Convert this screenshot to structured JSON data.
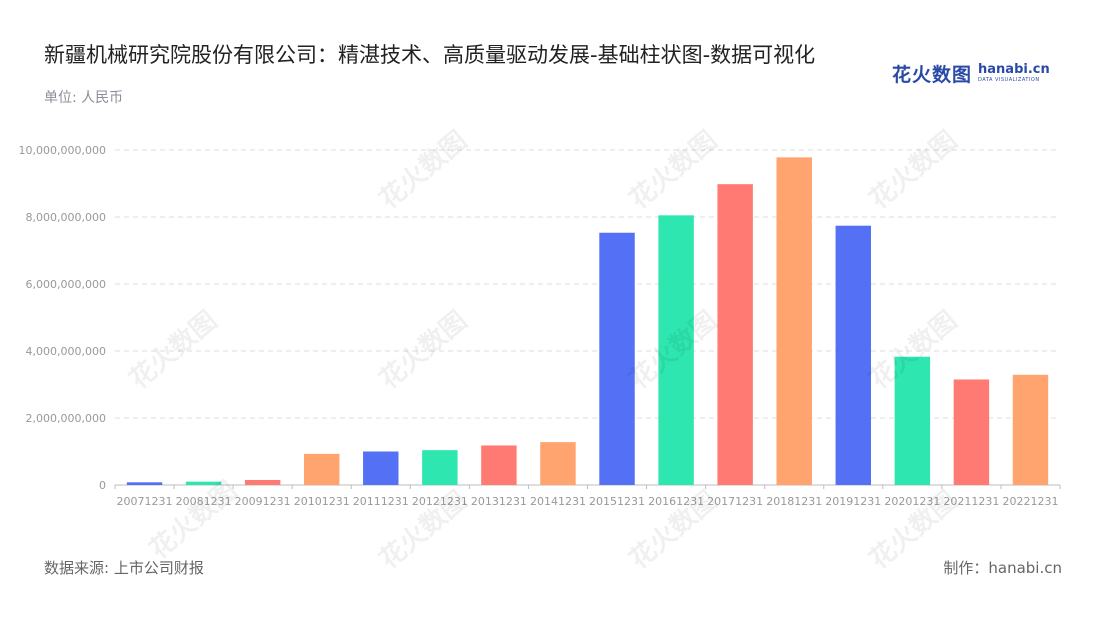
{
  "header": {
    "title": "新疆机械研究院股份有限公司：精湛技术、高质量驱动发展-基础柱状图-数据可视化",
    "unit": "单位: 人民币"
  },
  "logo": {
    "cn_text": "花火数图",
    "en_text": "hanabi.cn",
    "en_sub": "DATA VISUALIZATION"
  },
  "footer": {
    "source": "数据来源: 上市公司财报",
    "maker": "制作：hanabi.cn"
  },
  "watermark_text": "花火数图",
  "colors": {
    "cycle": [
      "#5470f5",
      "#2ee6b0",
      "#ff7a72",
      "#ffa46f"
    ],
    "grid": "#dcdcdc",
    "axis_text": "#999999"
  },
  "chart_data": {
    "type": "bar",
    "categories": [
      "20071231",
      "20081231",
      "20091231",
      "20101231",
      "20111231",
      "20121231",
      "20131231",
      "20141231",
      "20151231",
      "20161231",
      "20171231",
      "20181231",
      "20191231",
      "20201231",
      "20211231",
      "20221231"
    ],
    "values": [
      80000000,
      100000000,
      150000000,
      930000000,
      1000000000,
      1040000000,
      1180000000,
      1280000000,
      7530000000,
      8050000000,
      8980000000,
      9780000000,
      7740000000,
      3830000000,
      3150000000,
      3290000000
    ],
    "ylim": [
      0,
      10000000000
    ],
    "yticks": [
      0,
      2000000000,
      4000000000,
      6000000000,
      8000000000,
      10000000000
    ],
    "ytick_labels": [
      "0",
      "2,000,000,000",
      "4,000,000,000",
      "6,000,000,000",
      "8,000,000,000",
      "10,000,000,000"
    ],
    "grid": true,
    "xlabel": "",
    "ylabel": ""
  }
}
